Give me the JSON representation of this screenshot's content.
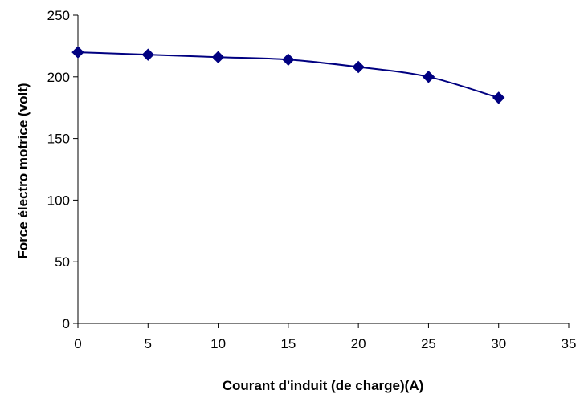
{
  "chart_data": {
    "type": "line",
    "title": "",
    "xlabel": "Courant d'induit (de charge)(A)",
    "ylabel": "Force électro motrice (volt)",
    "xlim": [
      0,
      35
    ],
    "ylim": [
      0,
      250
    ],
    "x_ticks": [
      0,
      5,
      10,
      15,
      20,
      25,
      30,
      35
    ],
    "y_ticks": [
      0,
      50,
      100,
      150,
      200,
      250
    ],
    "grid": false,
    "legend": "none",
    "marker": "diamond",
    "series": [
      {
        "color": "#000080",
        "x": [
          0,
          5,
          10,
          15,
          20,
          25,
          30
        ],
        "y": [
          220,
          218,
          216,
          214,
          208,
          200,
          183
        ]
      }
    ]
  }
}
